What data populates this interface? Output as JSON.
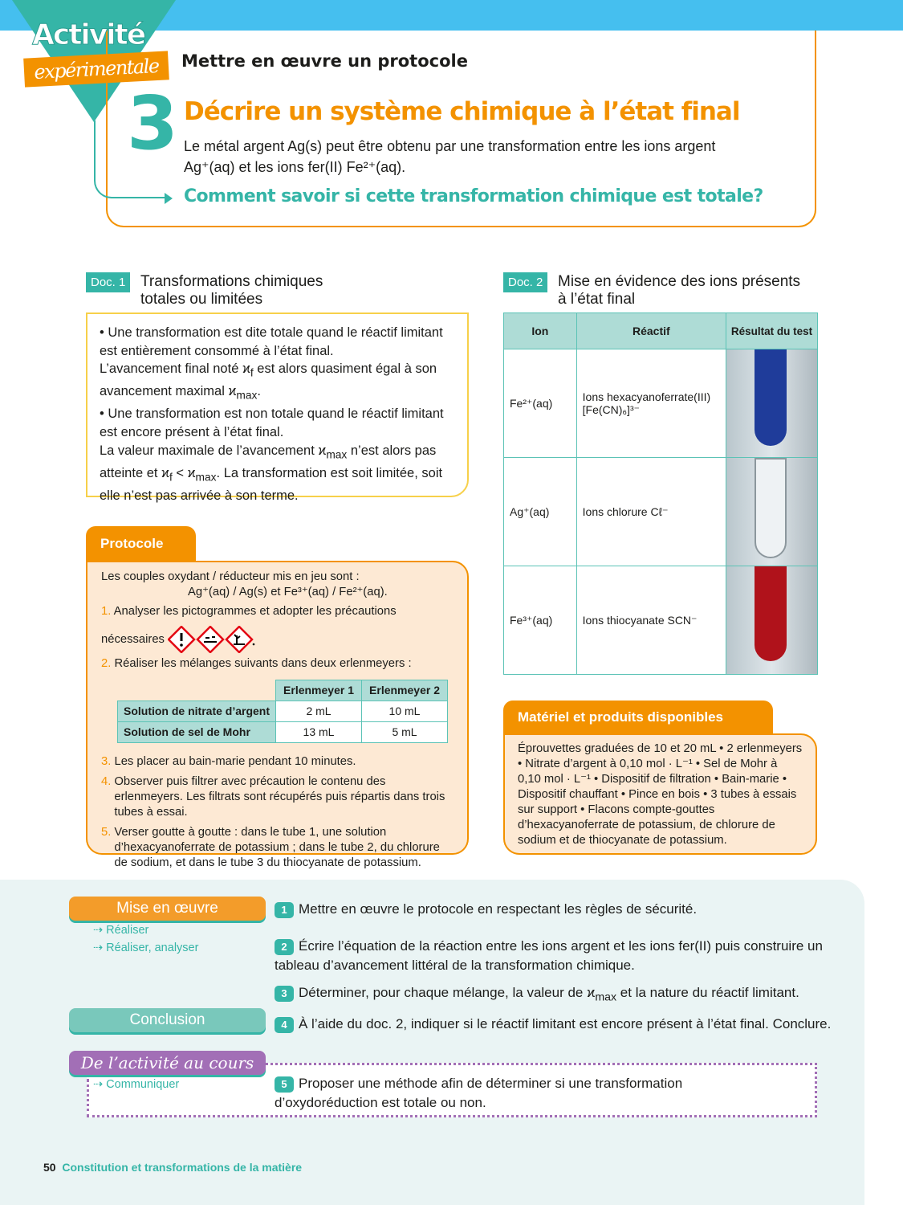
{
  "header": {
    "badge_line1": "Activité",
    "badge_line2": "expérimentale",
    "subtitle": "Mettre en œuvre un protocole",
    "number": "3",
    "title": "Décrire un système chimique à l’état final",
    "intro_line1": "Le métal argent Ag(s) peut être obtenu par une transformation entre les ions argent",
    "intro_line2": "Ag⁺(aq) et les ions fer(II) Fe²⁺(aq).",
    "question": "Comment savoir si cette transformation chimique est totale?"
  },
  "doc1": {
    "label": "Doc. 1",
    "title_line1": "Transformations chimiques",
    "title_line2": "totales ou limitées",
    "p1": "• Une transformation est dite totale quand le réactif limitant est entièrement consommé à l’état final.",
    "p2a": "L’avancement final noté ϰ",
    "p2sub": "f",
    "p2b": " est alors quasiment égal à son avancement maximal ϰ",
    "p2sub2": "max",
    "p2c": ".",
    "p3": "• Une transformation est non totale quand le réactif limitant est encore présent à l’état final.",
    "p4a": "La valeur maximale de l’avancement ϰ",
    "p4sub": "max",
    "p4b": " n’est alors pas atteinte et ϰ",
    "p4sub2": "f",
    "p4c": " < ϰ",
    "p4sub3": "max",
    "p4d": ". La transformation est soit limitée, soit elle n’est pas arrivée à son terme."
  },
  "protocol": {
    "tab": "Protocole",
    "intro": "Les couples oxydant / réducteur mis en jeu sont :",
    "couples": "Ag⁺(aq) / Ag(s) et Fe³⁺(aq) / Fe²⁺(aq).",
    "steps": [
      {
        "n": "1.",
        "text": "Analyser les pictogrammes et adopter les précautions"
      },
      {
        "n": "",
        "text": "nécessaires"
      },
      {
        "n": "2.",
        "text": "Réaliser les mélanges suivants dans deux erlenmeyers :"
      },
      {
        "n": "3.",
        "text": "Les placer au bain-marie pendant 10 minutes."
      },
      {
        "n": "4.",
        "text": "Observer puis filtrer avec précaution le contenu des erlenmeyers. Les filtrats sont récupérés puis répartis dans trois tubes à essai."
      },
      {
        "n": "5.",
        "text": "Verser goutte à goutte : dans le tube 1, une solution d’hexacyanoferrate de potassium ; dans le tube 2, du chlorure de sodium, et dans le tube 3 du thiocyanate de potassium."
      }
    ],
    "pictograms": [
      "exclamation-hazard",
      "corrosive-hazard",
      "environment-hazard"
    ],
    "table": {
      "headers": [
        "Erlenmeyer 1",
        "Erlenmeyer 2"
      ],
      "rows": [
        {
          "label": "Solution de nitrate d’argent",
          "values": [
            "2 mL",
            "10 mL"
          ]
        },
        {
          "label": "Solution de sel de Mohr",
          "values": [
            "13 mL",
            "5 mL"
          ]
        }
      ]
    }
  },
  "doc2": {
    "label": "Doc. 2",
    "title_line1": "Mise en évidence des ions présents",
    "title_line2": "à l’état final",
    "headers": [
      "Ion",
      "Réactif",
      "Résultat du test"
    ],
    "rows": [
      {
        "ion": "Fe²⁺(aq)",
        "reagent": "Ions hexacyanoferrate(III) [Fe(CN)₆]³⁻",
        "result_color": "#1f3c9a"
      },
      {
        "ion": "Ag⁺(aq)",
        "reagent": "Ions chlorure Cℓ⁻",
        "result_color": "#eef2f4"
      },
      {
        "ion": "Fe³⁺(aq)",
        "reagent": "Ions thiocyanate SCN⁻",
        "result_color": "#b0121b"
      }
    ]
  },
  "materials": {
    "tab": "Matériel et produits disponibles",
    "text": "Éprouvettes graduées de 10 et 20 mL • 2 erlenmeyers • Nitrate d’argent à 0,10 mol · L⁻¹ • Sel de Mohr à 0,10 mol · L⁻¹ • Dispositif de filtration • Bain-marie • Dispositif chauffant • Pince en bois • 3 tubes à essais sur support • Flacons compte-gouttes d’hexacyanoferrate de potassium, de chlorure de sodium et de thiocyanate de potassium."
  },
  "skills": {
    "mise": "Mise en œuvre",
    "mise_subs": [
      "⇢ Réaliser",
      "⇢ Réaliser, analyser"
    ],
    "conclusion": "Conclusion",
    "cours": "De l’activité au cours",
    "cours_sub": "⇢ Communiquer"
  },
  "questions": [
    {
      "n": "1",
      "text": "Mettre en œuvre le protocole en respectant les règles de sécurité."
    },
    {
      "n": "2",
      "text": "Écrire l’équation de la réaction entre les ions argent et les ions fer(II) puis construire un tableau d’avancement littéral de la transformation chimique."
    },
    {
      "n": "3",
      "a": "Déterminer, pour chaque mélange, la valeur de ϰ",
      "sub": "max",
      "b": " et la nature du réactif limitant."
    },
    {
      "n": "4",
      "text": "À l’aide du doc. 2, indiquer si le réactif limitant est encore présent à l’état final. Conclure."
    },
    {
      "n": "5",
      "text": "Proposer une méthode afin de déterminer si une transformation d’oxydoréduction est totale ou non."
    }
  ],
  "footer": {
    "page": "50",
    "chapter": "Constitution et transformations de la matière"
  },
  "colors": {
    "orange": "#f39200",
    "teal": "#35b5a7",
    "blue": "#45bfef",
    "purple": "#a26fb6"
  }
}
